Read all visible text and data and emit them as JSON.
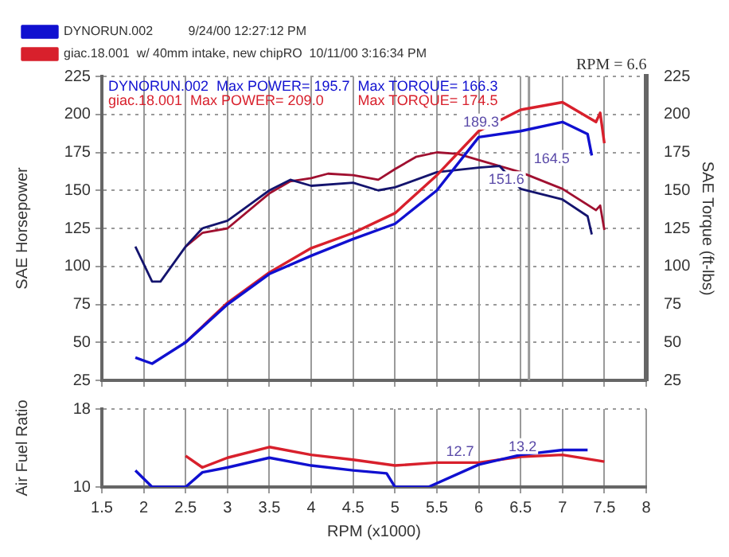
{
  "chart_data": [
    {
      "type": "line",
      "xlabel": null,
      "ylabel": "SAE Horsepower",
      "y2label": "SAE Torque (ft-lbs)",
      "xlim": [
        1.5,
        8.0
      ],
      "xticks": [
        1.5,
        2.0,
        2.5,
        3.0,
        3.5,
        4.0,
        4.5,
        5.0,
        5.5,
        6.0,
        6.5,
        7.0,
        7.5,
        8.0
      ],
      "ylim": [
        25,
        225
      ],
      "yticks": [
        25,
        50,
        75,
        100,
        125,
        150,
        175,
        200,
        225
      ],
      "y2lim": [
        25,
        225
      ],
      "y2ticks": [
        25,
        50,
        75,
        100,
        125,
        150,
        175,
        200,
        225
      ],
      "grid": true,
      "legend": "top left",
      "tick_labels": "y",
      "marker": "none",
      "line_style": "solid",
      "ref_lines": [
        {
          "axis": "x",
          "value": 6.6,
          "label": "RPM = 6.6",
          "color": "#999999"
        }
      ],
      "annotations": [
        "DYNORUN.002  Max POWER= 195.7",
        "giac.18.001  Max POWER= 209.0",
        "Max TORQUE= 166.3",
        "Max TORQUE= 174.5",
        {
          "text": "189.3",
          "x": 6.3,
          "y": 189
        },
        {
          "text": "164.5",
          "x": 6.6,
          "y": 165
        },
        {
          "text": "151.6",
          "x": 6.6,
          "y": 151
        }
      ],
      "series": [
        {
          "name": "DYNORUN.002          9/24/00 12:27:12 PM",
          "color": "#1010d0",
          "x": [
            1.9,
            2.1,
            2.5,
            3.0,
            3.5,
            4.0,
            4.5,
            5.0,
            5.5,
            6.0,
            6.5,
            7.0,
            7.3,
            7.35
          ],
          "values": [
            40,
            36,
            50,
            75,
            95,
            107,
            118,
            128,
            150,
            185,
            189,
            195,
            187,
            173
          ]
        },
        {
          "name": "giac.18.001  w/ 40mm intake, new chipRO  10/11/00 3:16:34 PM",
          "color": "#d8202c",
          "x": [
            2.5,
            3.0,
            3.5,
            4.0,
            4.5,
            5.0,
            5.5,
            6.0,
            6.5,
            7.0,
            7.4,
            7.45,
            7.5
          ],
          "values": [
            50,
            76,
            96,
            112,
            122,
            135,
            160,
            189,
            203,
            208,
            195,
            201,
            181
          ]
        },
        {
          "color": "#14146e",
          "axis": "y2",
          "x": [
            1.9,
            2.1,
            2.2,
            2.5,
            2.7,
            3.0,
            3.5,
            3.75,
            4.0,
            4.5,
            4.8,
            5.0,
            5.5,
            6.0,
            6.25,
            6.5,
            7.0,
            7.3,
            7.35
          ],
          "values": [
            113,
            90,
            90,
            113,
            125,
            130,
            150,
            157,
            153,
            155,
            150,
            152,
            162,
            165,
            166,
            151,
            144,
            133,
            121
          ]
        },
        {
          "color": "#a01030",
          "axis": "y2",
          "x": [
            2.5,
            2.7,
            3.0,
            3.5,
            3.75,
            4.0,
            4.2,
            4.5,
            4.8,
            5.0,
            5.25,
            5.5,
            5.75,
            6.0,
            6.5,
            7.0,
            7.4,
            7.45,
            7.5
          ],
          "values": [
            113,
            122,
            125,
            148,
            156,
            158,
            161,
            160,
            157,
            164,
            172,
            175,
            174,
            170,
            162,
            151,
            137,
            140,
            124
          ]
        }
      ]
    },
    {
      "type": "line",
      "xlabel": "RPM (x1000)",
      "ylabel": "Air Fuel Ratio",
      "xlim": [
        1.5,
        8.0
      ],
      "xticks": [
        1.5,
        2.0,
        2.5,
        3.0,
        3.5,
        4.0,
        4.5,
        5.0,
        5.5,
        6.0,
        6.5,
        7.0,
        7.5,
        8.0
      ],
      "ylim": [
        10,
        18
      ],
      "yticks": [
        10,
        18
      ],
      "grid": true,
      "marker": "none",
      "line_style": "solid",
      "annotations": [
        {
          "text": "12.7",
          "x": 6.0,
          "y": 12.7
        },
        {
          "text": "13.2",
          "x": 6.3,
          "y": 13.2
        }
      ],
      "series": [
        {
          "color": "#1010d0",
          "x": [
            1.9,
            2.1,
            2.5,
            2.7,
            3.0,
            3.5,
            4.0,
            4.5,
            4.9,
            5.0,
            5.4,
            6.0,
            6.5,
            7.0,
            7.3
          ],
          "values": [
            11.7,
            10,
            10,
            11.5,
            12.0,
            13.0,
            12.2,
            11.7,
            11.4,
            10,
            10,
            12.3,
            13.3,
            13.8,
            13.8
          ]
        },
        {
          "color": "#d8202c",
          "x": [
            2.5,
            2.7,
            3.0,
            3.5,
            4.0,
            4.5,
            5.0,
            5.5,
            6.0,
            6.5,
            7.0,
            7.5
          ],
          "values": [
            13.2,
            12.0,
            13.0,
            14.1,
            13.3,
            12.8,
            12.2,
            12.5,
            12.5,
            13.1,
            13.3,
            12.6
          ]
        }
      ]
    }
  ]
}
